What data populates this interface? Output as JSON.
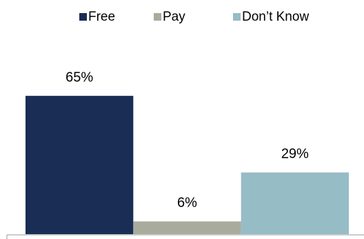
{
  "chart_data": {
    "type": "bar",
    "categories": [
      null
    ],
    "series": [
      {
        "name": "Free",
        "color": "#1a2d54",
        "values": [
          65
        ],
        "value_labels": [
          "65%"
        ]
      },
      {
        "name": "Pay",
        "color": "#a9ab9d",
        "values": [
          6
        ],
        "value_labels": [
          "6%"
        ]
      },
      {
        "name": "Don’t Know",
        "color": "#96bcc6",
        "values": [
          29
        ],
        "value_labels": [
          "29%"
        ]
      }
    ],
    "ylim": [
      0,
      100
    ],
    "legend": "top"
  }
}
